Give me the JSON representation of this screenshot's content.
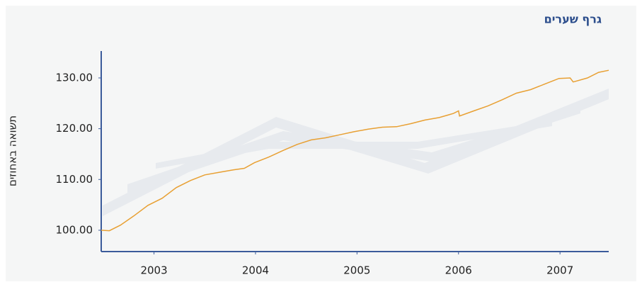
{
  "chart_data": {
    "type": "line",
    "title": "גרף שערים",
    "ylabel": "תשואה באחוזים",
    "x": [
      2002.48,
      2002.56,
      2002.67,
      2002.8,
      2002.94,
      2003.08,
      2003.22,
      2003.36,
      2003.5,
      2003.64,
      2003.78,
      2003.89,
      2003.99,
      2004.13,
      2004.27,
      2004.41,
      2004.55,
      2004.69,
      2004.83,
      2004.97,
      2005.11,
      2005.25,
      2005.39,
      2005.53,
      2005.67,
      2005.81,
      2005.95,
      2006.0,
      2006.01,
      2006.15,
      2006.29,
      2006.43,
      2006.57,
      2006.71,
      2006.85,
      2006.99,
      2007.1,
      2007.13,
      2007.27,
      2007.38,
      2007.48
    ],
    "series": [
      {
        "color": "#e8a033",
        "values": [
          100.0,
          99.9,
          101.0,
          102.8,
          104.9,
          106.3,
          108.4,
          109.8,
          110.9,
          111.4,
          111.9,
          112.2,
          113.3,
          114.4,
          115.7,
          116.9,
          117.8,
          118.2,
          118.8,
          119.4,
          119.9,
          120.3,
          120.4,
          121.0,
          121.7,
          122.2,
          123.0,
          123.5,
          122.5,
          123.5,
          124.5,
          125.7,
          127.0,
          127.7,
          128.8,
          129.9,
          130.0,
          129.2,
          130.0,
          131.1,
          131.5
        ]
      }
    ],
    "xlim": [
      2002.48,
      2007.48
    ],
    "xticks": [
      2003,
      2004,
      2005,
      2006,
      2007
    ],
    "ylim": [
      95.8,
      135.3
    ],
    "yticks": [
      {
        "value": 100,
        "label": "100.00"
      },
      {
        "value": 110,
        "label": "110.00"
      },
      {
        "value": 120,
        "label": "120.00"
      },
      {
        "value": 130,
        "label": "130.00"
      }
    ],
    "axis_color": "#3b5b9b"
  }
}
